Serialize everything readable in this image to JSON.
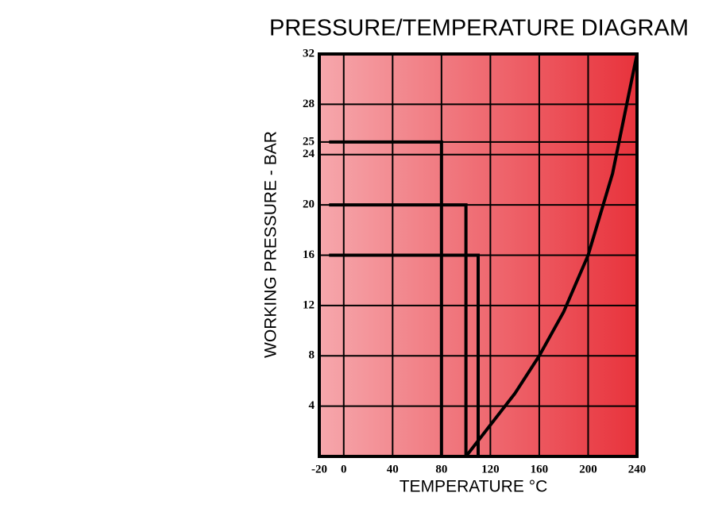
{
  "chart_data": {
    "type": "line",
    "title": "PRESSURE/TEMPERATURE DIAGRAM",
    "x_label": "TEMPERATURE °C",
    "y_label": "WORKING PRESSURE - BAR",
    "xlim": [
      -20,
      240
    ],
    "ylim": [
      0,
      32
    ],
    "xticks": [
      -20,
      0,
      40,
      80,
      120,
      160,
      200,
      240
    ],
    "yticks": [
      4,
      8,
      12,
      16,
      20,
      24,
      25,
      28,
      32
    ],
    "grid": true,
    "series": [
      {
        "color": "#000000",
        "x": [
          -12,
          80,
          80
        ],
        "values": [
          25,
          25,
          0
        ]
      },
      {
        "color": "#000000",
        "x": [
          -12,
          100,
          100
        ],
        "values": [
          20,
          20,
          0
        ]
      },
      {
        "color": "#000000",
        "x": [
          -12,
          110,
          110
        ],
        "values": [
          16,
          16,
          0
        ]
      },
      {
        "color": "#000000",
        "x": [
          100,
          120,
          140,
          160,
          180,
          200,
          220,
          240
        ],
        "values": [
          0,
          2.5,
          5,
          8,
          11.5,
          16,
          22.5,
          32
        ]
      }
    ]
  }
}
